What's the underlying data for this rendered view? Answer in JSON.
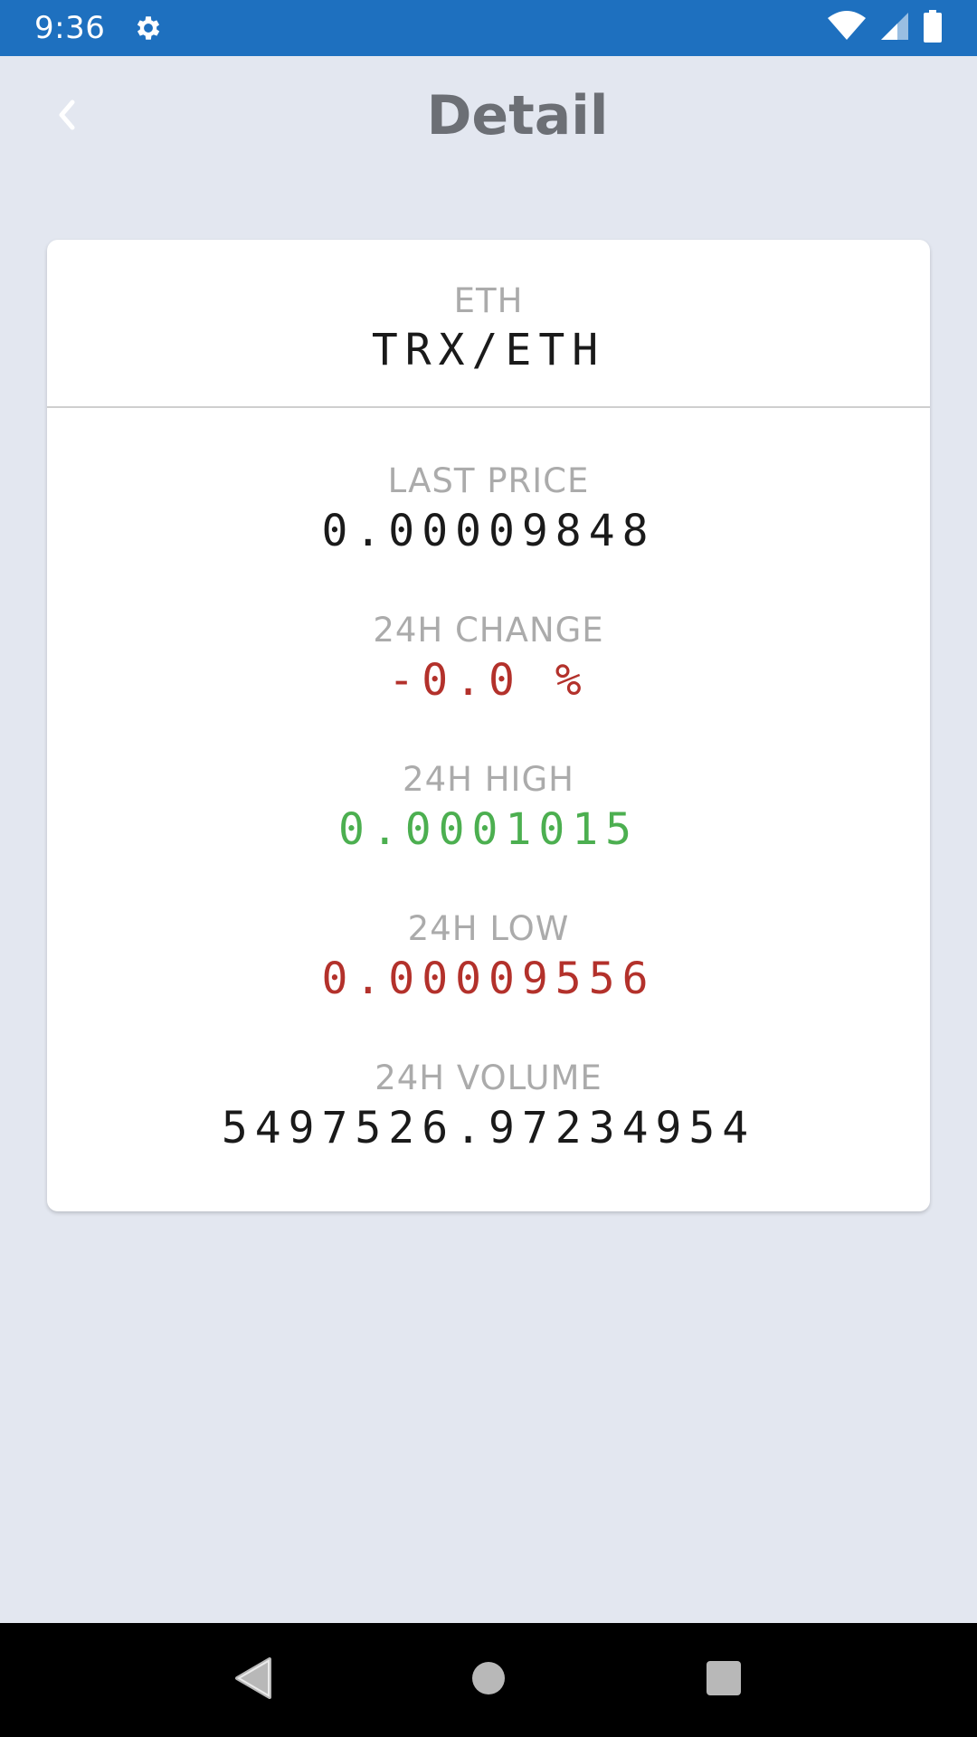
{
  "status_bar": {
    "time": "9:36",
    "icons": [
      "gear-icon",
      "wifi-icon",
      "cell-signal-icon",
      "battery-icon"
    ]
  },
  "header": {
    "title": "Detail",
    "back_icon": "chevron-left-icon"
  },
  "card": {
    "market": "ETH",
    "pair": "TRX/ETH",
    "stats": [
      {
        "label": "LAST PRICE",
        "value": "0.00009848",
        "color": "#1a1a1a"
      },
      {
        "label": "24H CHANGE",
        "value": "-0.0 %",
        "color": "#b3312b"
      },
      {
        "label": "24H HIGH",
        "value": "0.0001015",
        "color": "#4caf50"
      },
      {
        "label": "24H LOW",
        "value": "0.00009556",
        "color": "#b3312b"
      },
      {
        "label": "24H VOLUME",
        "value": "5497526.97234954",
        "color": "#1a1a1a"
      }
    ]
  },
  "colors": {
    "status_bar": "#1e70bf",
    "background": "#e3e7f0",
    "title": "#6c6f75",
    "label": "#ababab"
  },
  "nav_bar": {
    "icons": [
      "back-triangle-icon",
      "home-circle-icon",
      "recents-square-icon"
    ]
  }
}
